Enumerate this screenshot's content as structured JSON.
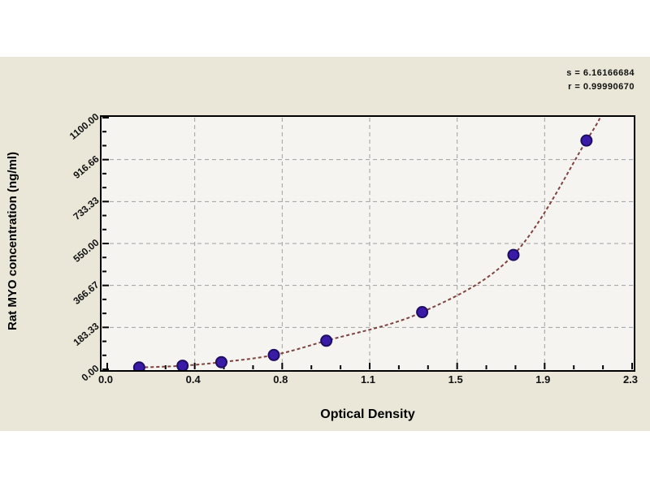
{
  "figure": {
    "background_color": "#eae7d8",
    "plot_background_color": "#f6f4f1",
    "grid_color": "#a0a0a0",
    "axis_color": "#000000"
  },
  "chart_data": {
    "type": "scatter",
    "title": "",
    "xlabel": "Optical Density",
    "ylabel": "Rat MYO concentration (ng/ml)",
    "xlim": [
      0,
      2.3
    ],
    "ylim": [
      0,
      1100
    ],
    "grid": true,
    "legend": "none",
    "x_tick_labels": [
      "0.0",
      "0.4",
      "0.8",
      "1.1",
      "1.5",
      "1.9",
      "2.3"
    ],
    "x_tick_values": [
      0,
      0.3833,
      0.7667,
      1.15,
      1.5333,
      1.9167,
      2.3
    ],
    "y_tick_labels": [
      "0.00",
      "183.33",
      "366.67",
      "550.00",
      "733.33",
      "916.66",
      "1100.00"
    ],
    "y_tick_values": [
      0,
      183.33,
      366.67,
      550,
      733.33,
      916.66,
      1100
    ],
    "annotations": {
      "s_label": "s = 6.16166684",
      "r_label": "r = 0.99990670"
    },
    "series": [
      {
        "name": "standard-points",
        "type": "scatter",
        "marker_color": "#3a1ba8",
        "marker_edge_color": "#1d0e60",
        "points": [
          {
            "od": 0.14,
            "concentration": 7.8
          },
          {
            "od": 0.33,
            "concentration": 15.6
          },
          {
            "od": 0.5,
            "concentration": 31.25
          },
          {
            "od": 0.73,
            "concentration": 62.5
          },
          {
            "od": 0.96,
            "concentration": 125
          },
          {
            "od": 1.38,
            "concentration": 250
          },
          {
            "od": 1.78,
            "concentration": 500
          },
          {
            "od": 2.1,
            "concentration": 1000
          }
        ]
      },
      {
        "name": "fit-curve",
        "type": "line",
        "color": "#7d4340",
        "dash": "4 3",
        "end_extension": {
          "od": 2.16,
          "concentration": 1100
        }
      }
    ]
  }
}
